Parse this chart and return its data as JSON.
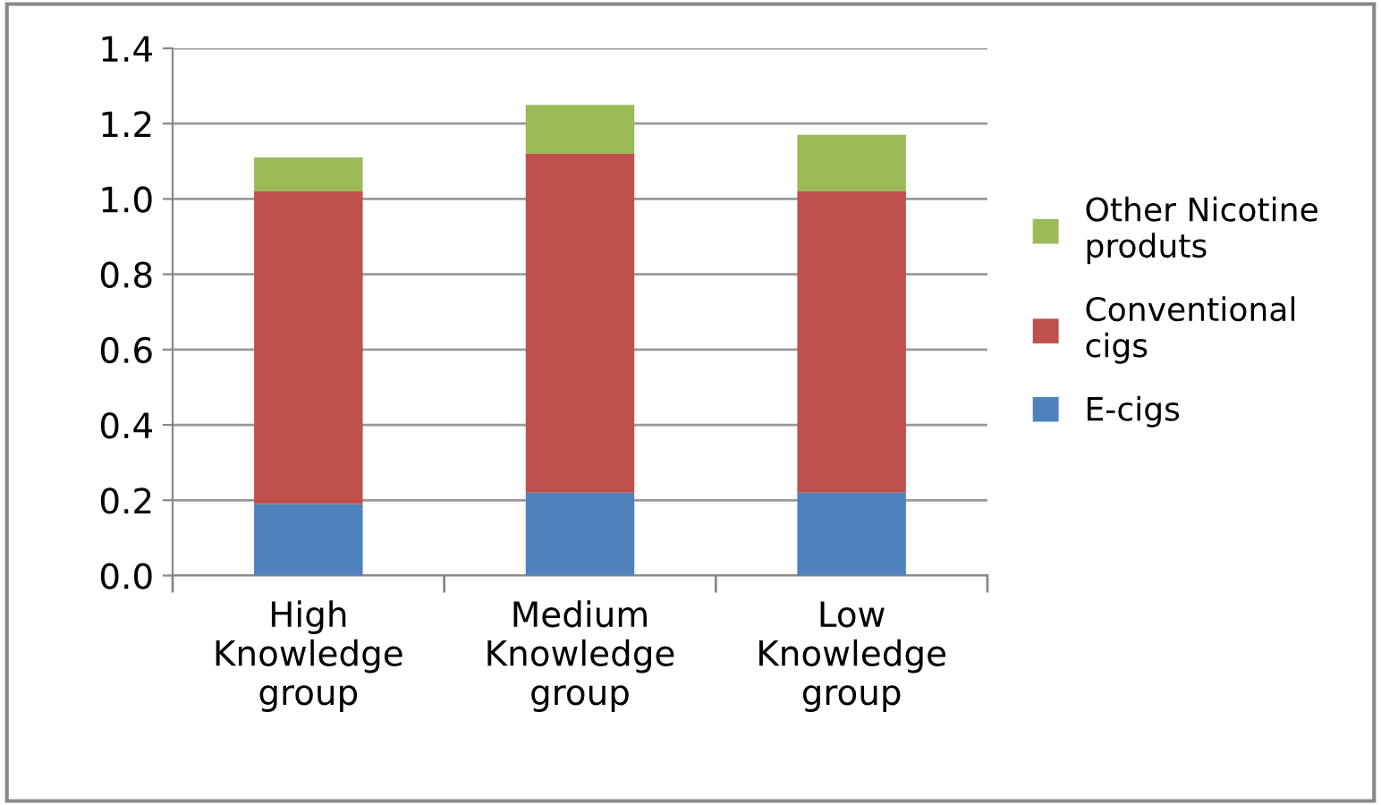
{
  "chart_data": {
    "type": "bar",
    "stacked": true,
    "categories": [
      "High\nKnowledge\ngroup",
      "Medium\nKnowledge\ngroup",
      "Low\nKnowledge\ngroup"
    ],
    "series": [
      {
        "name": "E-cigs",
        "color": "#4f81bd",
        "values": [
          0.19,
          0.22,
          0.22
        ]
      },
      {
        "name": "Conventional\ncigs",
        "color": "#c0504d",
        "values": [
          0.83,
          0.9,
          0.8
        ]
      },
      {
        "name": "Other Nicotine\nproduts",
        "color": "#9bbb59",
        "values": [
          0.09,
          0.13,
          0.15
        ]
      }
    ],
    "ylim": [
      0,
      1.4
    ],
    "yticks": [
      {
        "value": 0,
        "label": "0.0"
      },
      {
        "value": 0.2,
        "label": "0.2"
      },
      {
        "value": 0.4,
        "label": "0.4"
      },
      {
        "value": 0.6,
        "label": "0.6"
      },
      {
        "value": 0.8,
        "label": "0.8"
      },
      {
        "value": 1.0,
        "label": "1.0"
      },
      {
        "value": 1.2,
        "label": "1.2"
      },
      {
        "value": 1.4,
        "label": "1.4"
      }
    ],
    "grid": "y",
    "legend": "right"
  }
}
